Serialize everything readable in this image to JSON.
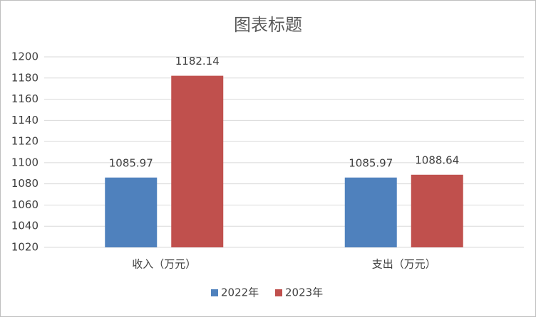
{
  "chart_data": {
    "type": "bar",
    "title": "图表标题",
    "categories": [
      "收入（万元）",
      "支出（万元）"
    ],
    "series": [
      {
        "name": "2022年",
        "color": "#4f81bd",
        "values": [
          1085.97,
          1085.97
        ]
      },
      {
        "name": "2023年",
        "color": "#c0504d",
        "values": [
          1182.14,
          1088.64
        ]
      }
    ],
    "ylim": [
      1020,
      1200
    ],
    "yticks": [
      1020,
      1040,
      1060,
      1080,
      1100,
      1120,
      1140,
      1160,
      1180,
      1200
    ],
    "grid": true,
    "legend": "bottom"
  }
}
